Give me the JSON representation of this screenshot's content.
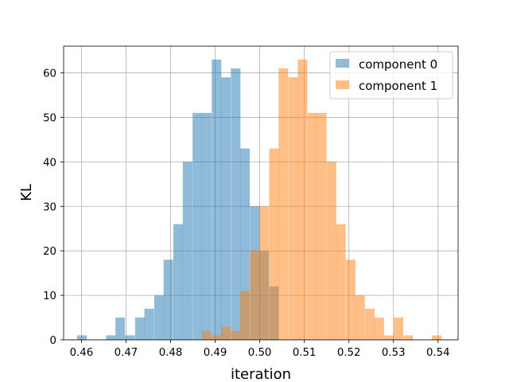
{
  "chart_data": {
    "type": "histogram",
    "xlabel": "iteration",
    "ylabel": "KL",
    "xlim": [
      0.456,
      0.5445
    ],
    "ylim": [
      0,
      66
    ],
    "bin_width": 0.00215,
    "x_ticks": [
      "0.46",
      "0.47",
      "0.48",
      "0.49",
      "0.50",
      "0.51",
      "0.52",
      "0.53",
      "0.54"
    ],
    "x_tick_values": [
      0.46,
      0.47,
      0.48,
      0.49,
      0.5,
      0.51,
      0.52,
      0.53,
      0.54
    ],
    "y_ticks": [
      "0",
      "10",
      "20",
      "30",
      "40",
      "50",
      "60"
    ],
    "y_tick_values": [
      0,
      10,
      20,
      30,
      40,
      50,
      60
    ],
    "grid": true,
    "legend_position": "top-right",
    "series": [
      {
        "name": "component 0",
        "color": "#1f77b4",
        "alpha": 0.5,
        "bins": [
          [
            0.4601,
            1
          ],
          [
            0.4623,
            0
          ],
          [
            0.4644,
            0
          ],
          [
            0.4666,
            1
          ],
          [
            0.4687,
            5
          ],
          [
            0.4709,
            1
          ],
          [
            0.4731,
            5
          ],
          [
            0.4752,
            7
          ],
          [
            0.4774,
            10
          ],
          [
            0.4795,
            18
          ],
          [
            0.4817,
            26
          ],
          [
            0.4838,
            40
          ],
          [
            0.486,
            51
          ],
          [
            0.4881,
            51
          ],
          [
            0.4903,
            63
          ],
          [
            0.4924,
            59
          ],
          [
            0.4946,
            61
          ],
          [
            0.4967,
            43
          ],
          [
            0.4989,
            30
          ],
          [
            0.501,
            20
          ],
          [
            0.5032,
            12
          ]
        ]
      },
      {
        "name": "component 1",
        "color": "#ff7f0e",
        "alpha": 0.5,
        "bins": [
          [
            0.4881,
            2
          ],
          [
            0.4903,
            1
          ],
          [
            0.4924,
            3
          ],
          [
            0.4946,
            2
          ],
          [
            0.4967,
            11
          ],
          [
            0.4989,
            20
          ],
          [
            0.501,
            30
          ],
          [
            0.5032,
            43
          ],
          [
            0.5053,
            61
          ],
          [
            0.5075,
            59
          ],
          [
            0.5096,
            63
          ],
          [
            0.5118,
            51
          ],
          [
            0.5139,
            51
          ],
          [
            0.5161,
            40
          ],
          [
            0.5182,
            26
          ],
          [
            0.5204,
            18
          ],
          [
            0.5225,
            10
          ],
          [
            0.5247,
            7
          ],
          [
            0.5268,
            5
          ],
          [
            0.529,
            1
          ],
          [
            0.5311,
            5
          ],
          [
            0.5333,
            1
          ],
          [
            0.5354,
            0
          ],
          [
            0.5376,
            0
          ],
          [
            0.5397,
            1
          ]
        ]
      }
    ]
  }
}
